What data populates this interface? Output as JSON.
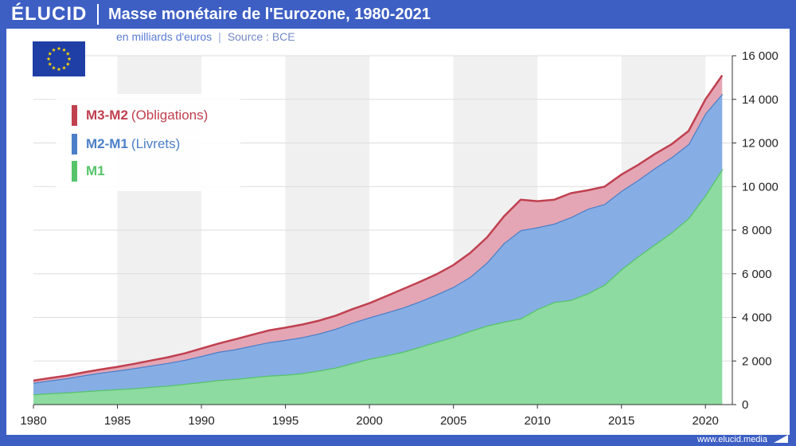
{
  "header": {
    "logo": "ÉLUCID",
    "title": "Masse monétaire de l'Eurozone, 1980-2021",
    "subtitle": "en milliards d'euros",
    "divider": "|",
    "source": "Source : BCE"
  },
  "footer": {
    "url": "www.elucid.media"
  },
  "flag": {
    "icon": "eu-flag-icon",
    "color": "#1f3fa6",
    "star_color": "#ffd700"
  },
  "colors": {
    "m1": "#8ddba0",
    "m1_line": "#55c46a",
    "m2m1": "#86aee4",
    "m2m1_line": "#4c7fc8",
    "m3m2": "#e4a6b4",
    "m3m2_line": "#c0404f",
    "band": "#f0f0f0",
    "grid": "#dddddd"
  },
  "chart_data": {
    "type": "area",
    "title": "Masse monétaire de l'Eurozone, 1980-2021",
    "subtitle": "en milliards d'euros",
    "stacked": true,
    "x": [
      1980,
      1981,
      1982,
      1983,
      1984,
      1985,
      1986,
      1987,
      1988,
      1989,
      1990,
      1991,
      1992,
      1993,
      1994,
      1995,
      1996,
      1997,
      1998,
      1999,
      2000,
      2001,
      2002,
      2003,
      2004,
      2005,
      2006,
      2007,
      2008,
      2009,
      2010,
      2011,
      2012,
      2013,
      2014,
      2015,
      2016,
      2017,
      2018,
      2019,
      2020,
      2021
    ],
    "series": [
      {
        "name": "M1",
        "key": "m1",
        "values": [
          470,
          520,
          560,
          610,
          660,
          700,
          750,
          810,
          870,
          950,
          1030,
          1120,
          1180,
          1250,
          1330,
          1370,
          1440,
          1560,
          1700,
          1900,
          2100,
          2250,
          2420,
          2650,
          2880,
          3100,
          3380,
          3620,
          3800,
          3950,
          4380,
          4700,
          4800,
          5100,
          5500,
          6200,
          6800,
          7350,
          7900,
          8550,
          9600,
          10800
        ]
      },
      {
        "name": "M2-M1",
        "key": "m2m1",
        "values": [
          530,
          590,
          650,
          730,
          800,
          860,
          920,
          980,
          1040,
          1100,
          1200,
          1300,
          1360,
          1450,
          1530,
          1600,
          1650,
          1700,
          1780,
          1860,
          1900,
          1970,
          2030,
          2080,
          2170,
          2300,
          2480,
          2900,
          3600,
          4050,
          3750,
          3600,
          3800,
          3880,
          3700,
          3600,
          3500,
          3500,
          3450,
          3400,
          3750,
          3450
        ]
      },
      {
        "name": "M3-M2",
        "key": "m3m2",
        "values": [
          100,
          110,
          120,
          140,
          150,
          170,
          200,
          230,
          260,
          300,
          340,
          380,
          450,
          500,
          540,
          560,
          580,
          590,
          600,
          620,
          650,
          750,
          850,
          900,
          930,
          1000,
          1100,
          1150,
          1230,
          1400,
          1200,
          1100,
          1100,
          850,
          800,
          750,
          700,
          650,
          600,
          600,
          650,
          850
        ]
      }
    ],
    "x_ticks": [
      "1980",
      "1985",
      "1990",
      "1995",
      "2000",
      "2005",
      "2010",
      "2015",
      "2020"
    ],
    "y_ticks": [
      "0",
      "2 000",
      "4 000",
      "6 000",
      "8 000",
      "10 000",
      "12 000",
      "14 000",
      "16 000"
    ],
    "xlim": [
      1980,
      2021.6
    ],
    "ylim": [
      0,
      16000
    ],
    "y_axis_side": "right",
    "legend": [
      {
        "name": "M3-M2",
        "detail": "(Obligations)",
        "key": "m3m2"
      },
      {
        "name": "M2-M1",
        "detail": "(Livrets)",
        "key": "m2m1"
      },
      {
        "name": "M1",
        "detail": "",
        "key": "m1"
      }
    ],
    "legend_position": "top-left",
    "grid": true
  }
}
